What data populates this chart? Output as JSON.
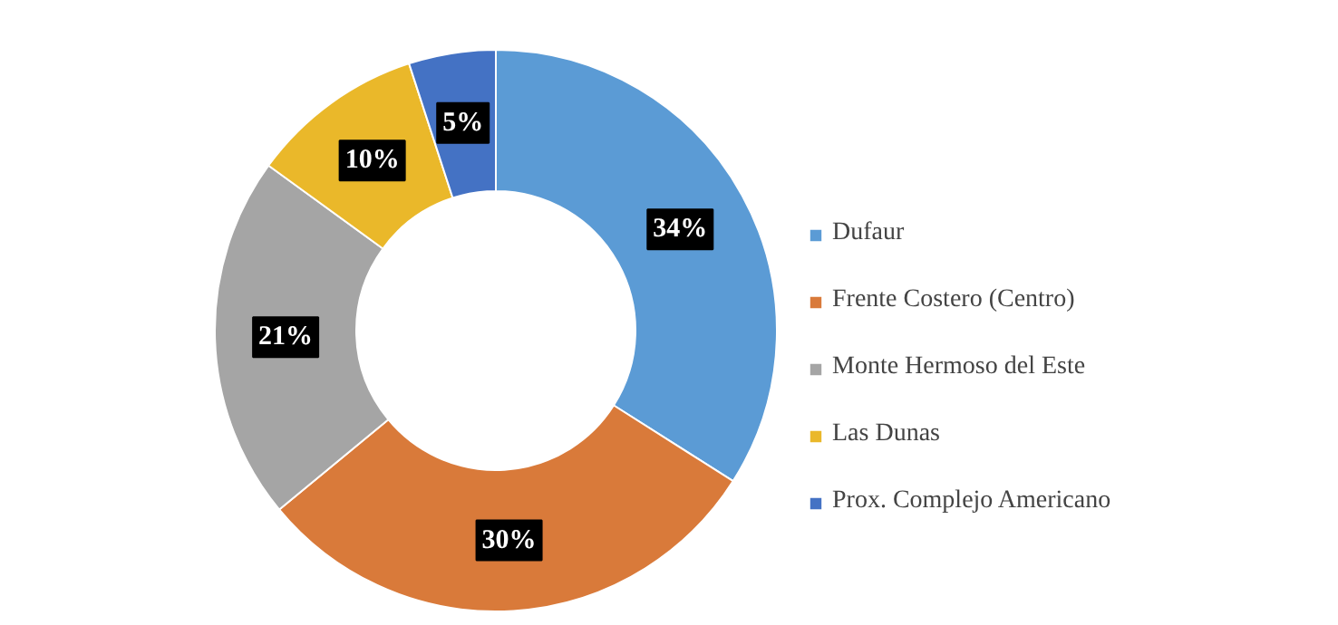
{
  "chart_data": {
    "type": "donut",
    "categories": [
      "Dufaur",
      "Frente Costero (Centro)",
      "Monte Hermoso del Este",
      "Las Dunas",
      "Prox. Complejo Americano"
    ],
    "values": [
      34,
      30,
      21,
      10,
      5
    ],
    "colors": [
      "#5b9bd5",
      "#d97a3a",
      "#a5a5a5",
      "#eab82a",
      "#4472c4"
    ],
    "value_labels": [
      "34%",
      "30%",
      "21%",
      "10%",
      "5%"
    ],
    "legend": "right"
  }
}
